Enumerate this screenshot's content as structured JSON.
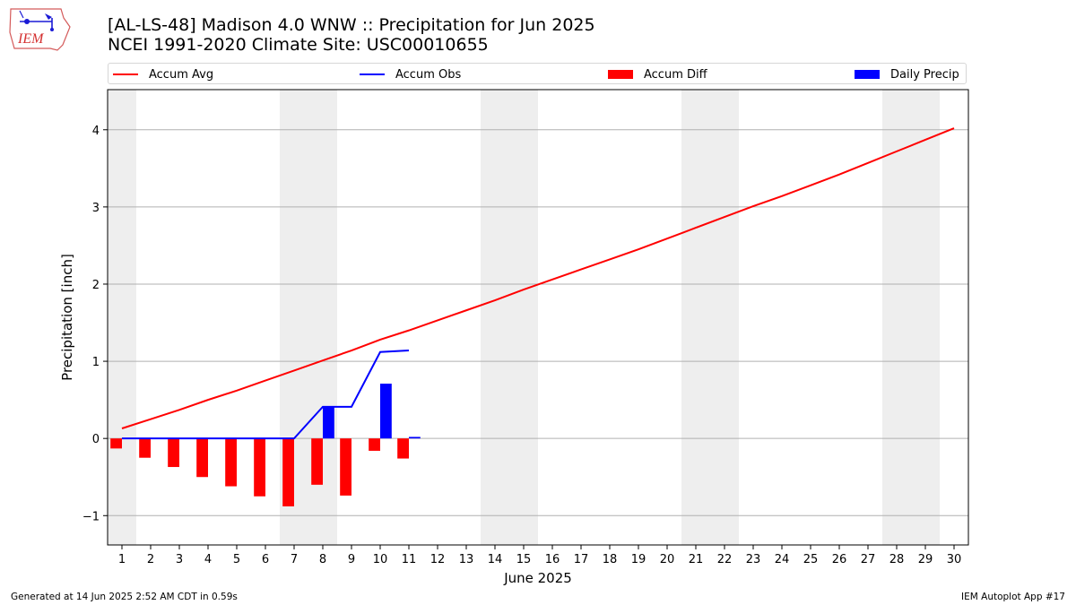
{
  "header": {
    "title_line1": "[AL-LS-48] Madison 4.0 WNW :: Precipitation for Jun 2025",
    "title_line2": "NCEI 1991-2020 Climate Site: USC00010655",
    "logo_text": "IEM"
  },
  "footer": {
    "generated": "Generated at 14 Jun 2025 2:52 AM CDT in 0.59s",
    "app": "IEM Autoplot App #17"
  },
  "colors": {
    "avg": "#ff0000",
    "obs": "#0000ff",
    "diff": "#ff0000",
    "precip": "#0000ff",
    "weekend_shade": "#eeeeee",
    "grid": "#b0b0b0"
  },
  "chart_data": {
    "type": "bar",
    "xlabel": "June 2025",
    "ylabel": "Precipitation [inch]",
    "x": [
      1,
      2,
      3,
      4,
      5,
      6,
      7,
      8,
      9,
      10,
      11,
      12,
      13,
      14,
      15,
      16,
      17,
      18,
      19,
      20,
      21,
      22,
      23,
      24,
      25,
      26,
      27,
      28,
      29,
      30
    ],
    "xlim": [
      0.5,
      30.5
    ],
    "ylim": [
      -1.38,
      4.52
    ],
    "yticks": [
      -1,
      0,
      1,
      2,
      3,
      4
    ],
    "ytick_labels": [
      "−1",
      "0",
      "1",
      "2",
      "3",
      "4"
    ],
    "grid": "horizontal",
    "legend_placement": "top",
    "shaded_days": [
      [
        0.5,
        1.5
      ],
      [
        6.5,
        8.5
      ],
      [
        13.5,
        15.5
      ],
      [
        20.5,
        22.5
      ],
      [
        27.5,
        29.5
      ]
    ],
    "legend": [
      "Accum Avg",
      "Accum Obs",
      "Accum Diff",
      "Daily Precip"
    ],
    "series": [
      {
        "name": "Accum Avg",
        "kind": "line",
        "x": [
          1,
          2,
          3,
          4,
          5,
          6,
          7,
          8,
          9,
          10,
          11,
          12,
          13,
          14,
          15,
          16,
          17,
          18,
          19,
          20,
          21,
          22,
          23,
          24,
          25,
          26,
          27,
          28,
          29,
          30
        ],
        "values": [
          0.13,
          0.25,
          0.37,
          0.5,
          0.62,
          0.75,
          0.88,
          1.01,
          1.14,
          1.28,
          1.4,
          1.53,
          1.66,
          1.79,
          1.93,
          2.06,
          2.19,
          2.32,
          2.45,
          2.59,
          2.73,
          2.87,
          3.01,
          3.14,
          3.28,
          3.42,
          3.57,
          3.72,
          3.87,
          4.02
        ]
      },
      {
        "name": "Accum Obs",
        "kind": "line",
        "x": [
          1,
          2,
          3,
          4,
          5,
          6,
          7,
          8,
          9,
          10,
          11
        ],
        "values": [
          0,
          0,
          0,
          0,
          0,
          0,
          0,
          0.41,
          0.41,
          1.12,
          1.14
        ]
      },
      {
        "name": "Accum Diff",
        "kind": "bar",
        "x": [
          1,
          2,
          3,
          4,
          5,
          6,
          7,
          8,
          9,
          10,
          11
        ],
        "values": [
          -0.13,
          -0.25,
          -0.37,
          -0.5,
          -0.62,
          -0.75,
          -0.88,
          -0.6,
          -0.74,
          -0.16,
          -0.26
        ]
      },
      {
        "name": "Daily Precip",
        "kind": "bar",
        "x": [
          1,
          2,
          3,
          4,
          5,
          6,
          7,
          8,
          9,
          10,
          11
        ],
        "values": [
          0,
          0,
          0,
          0,
          0,
          0,
          0,
          0.41,
          0,
          0.71,
          0.02
        ]
      }
    ]
  }
}
